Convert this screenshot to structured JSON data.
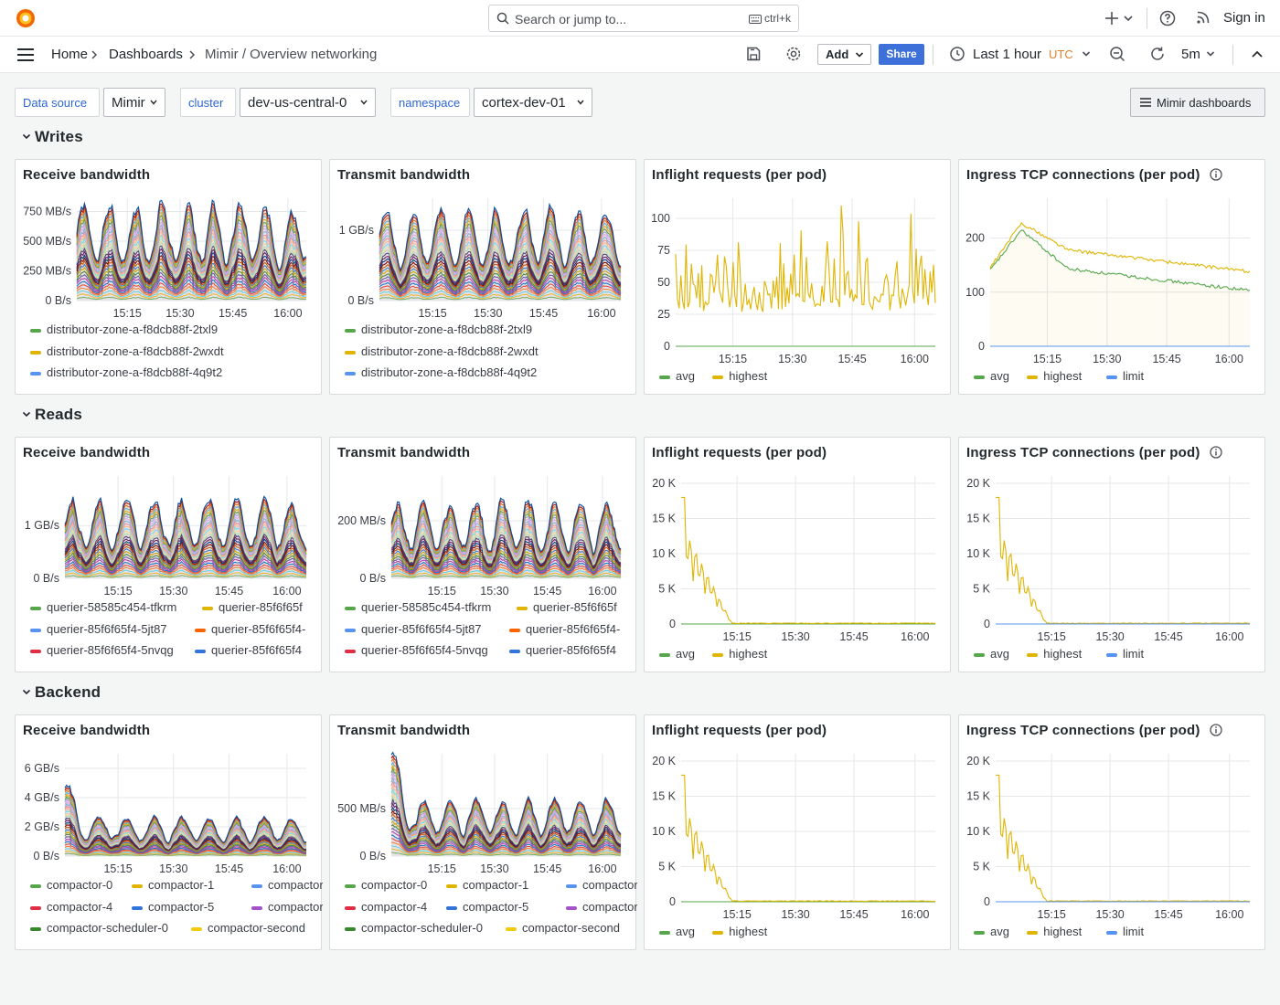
{
  "topbar": {
    "search_placeholder": "Search or jump to...",
    "search_shortcut": "ctrl+k",
    "sign_in": "Sign in"
  },
  "breadcrumbs": [
    "Home",
    "Dashboards",
    "Mimir / Overview networking"
  ],
  "toolbar": {
    "add_label": "Add",
    "share_label": "Share",
    "time_range": "Last 1 hour",
    "timezone": "UTC",
    "refresh_interval": "5m"
  },
  "variables": [
    {
      "label": "Data source",
      "value": "Mimir"
    },
    {
      "label": "cluster",
      "value": "dev-us-central-0"
    },
    {
      "label": "namespace",
      "value": "cortex-dev-01"
    }
  ],
  "dashboards_link": "Mimir dashboards",
  "colors": {
    "accent": "#3d71d9",
    "utc": "#e0812f",
    "green": "#56a64b",
    "yellow": "#e0b400",
    "blue": "#5794f2",
    "orange": "#fa6400",
    "red": "#e02f44",
    "darkblue": "#3274d9",
    "purple": "#a352cc",
    "darkgreen": "#37872d",
    "lightyellow": "#f2cc0c"
  },
  "rows": [
    {
      "title": "Writes",
      "panels": [
        {
          "title": "Receive bandwidth",
          "info": false,
          "legend": [
            {
              "name": "distributor-zone-a-f8dcb88f-2txl9",
              "color": "#56a64b"
            },
            {
              "name": "distributor-zone-a-f8dcb88f-2wxdt",
              "color": "#e0b400"
            },
            {
              "name": "distributor-zone-a-f8dcb88f-4q9t2",
              "color": "#5794f2"
            }
          ]
        },
        {
          "title": "Transmit bandwidth",
          "info": false,
          "legend": [
            {
              "name": "distributor-zone-a-f8dcb88f-2txl9",
              "color": "#56a64b"
            },
            {
              "name": "distributor-zone-a-f8dcb88f-2wxdt",
              "color": "#e0b400"
            },
            {
              "name": "distributor-zone-a-f8dcb88f-4q9t2",
              "color": "#5794f2"
            }
          ]
        },
        {
          "title": "Inflight requests (per pod)",
          "info": false,
          "legend": [
            {
              "name": "avg",
              "color": "#56a64b"
            },
            {
              "name": "highest",
              "color": "#e0b400"
            }
          ]
        },
        {
          "title": "Ingress TCP connections (per pod)",
          "info": true,
          "legend": [
            {
              "name": "avg",
              "color": "#56a64b"
            },
            {
              "name": "highest",
              "color": "#e0b400"
            },
            {
              "name": "limit",
              "color": "#5794f2"
            }
          ]
        }
      ]
    },
    {
      "title": "Reads",
      "panels": [
        {
          "title": "Receive bandwidth",
          "info": false,
          "legend": [
            {
              "name": "querier-58585c454-tfkrm",
              "color": "#56a64b"
            },
            {
              "name": "querier-85f6f65f",
              "color": "#e0b400"
            },
            {
              "name": "querier-85f6f65f4-5jt87",
              "color": "#5794f2"
            },
            {
              "name": "querier-85f6f65f4-",
              "color": "#fa6400"
            },
            {
              "name": "querier-85f6f65f4-5nvqg",
              "color": "#e02f44"
            },
            {
              "name": "querier-85f6f65f4",
              "color": "#3274d9"
            }
          ]
        },
        {
          "title": "Transmit bandwidth",
          "info": false,
          "legend": [
            {
              "name": "querier-58585c454-tfkrm",
              "color": "#56a64b"
            },
            {
              "name": "querier-85f6f65f",
              "color": "#e0b400"
            },
            {
              "name": "querier-85f6f65f4-5jt87",
              "color": "#5794f2"
            },
            {
              "name": "querier-85f6f65f4-",
              "color": "#fa6400"
            },
            {
              "name": "querier-85f6f65f4-5nvqg",
              "color": "#e02f44"
            },
            {
              "name": "querier-85f6f65f4",
              "color": "#3274d9"
            }
          ]
        },
        {
          "title": "Inflight requests (per pod)",
          "info": false,
          "legend": [
            {
              "name": "avg",
              "color": "#56a64b"
            },
            {
              "name": "highest",
              "color": "#e0b400"
            }
          ]
        },
        {
          "title": "Ingress TCP connections (per pod)",
          "info": true,
          "legend": [
            {
              "name": "avg",
              "color": "#56a64b"
            },
            {
              "name": "highest",
              "color": "#e0b400"
            },
            {
              "name": "limit",
              "color": "#5794f2"
            }
          ]
        }
      ]
    },
    {
      "title": "Backend",
      "panels": [
        {
          "title": "Receive bandwidth",
          "info": false,
          "legend": [
            {
              "name": "compactor-0",
              "color": "#56a64b"
            },
            {
              "name": "compactor-1",
              "color": "#e0b400"
            },
            {
              "name": "compactor-",
              "color": "#5794f2"
            },
            {
              "name": "compactor-4",
              "color": "#e02f44"
            },
            {
              "name": "compactor-5",
              "color": "#3274d9"
            },
            {
              "name": "compactor-",
              "color": "#a352cc"
            },
            {
              "name": "compactor-scheduler-0",
              "color": "#37872d"
            },
            {
              "name": "compactor-second",
              "color": "#f2cc0c"
            }
          ]
        },
        {
          "title": "Transmit bandwidth",
          "info": false,
          "legend": [
            {
              "name": "compactor-0",
              "color": "#56a64b"
            },
            {
              "name": "compactor-1",
              "color": "#e0b400"
            },
            {
              "name": "compactor-",
              "color": "#5794f2"
            },
            {
              "name": "compactor-4",
              "color": "#e02f44"
            },
            {
              "name": "compactor-5",
              "color": "#3274d9"
            },
            {
              "name": "compactor-",
              "color": "#a352cc"
            },
            {
              "name": "compactor-scheduler-0",
              "color": "#37872d"
            },
            {
              "name": "compactor-second",
              "color": "#f2cc0c"
            }
          ]
        },
        {
          "title": "Inflight requests (per pod)",
          "info": false,
          "legend": [
            {
              "name": "avg",
              "color": "#56a64b"
            },
            {
              "name": "highest",
              "color": "#e0b400"
            }
          ]
        },
        {
          "title": "Ingress TCP connections (per pod)",
          "info": true,
          "legend": [
            {
              "name": "avg",
              "color": "#56a64b"
            },
            {
              "name": "highest",
              "color": "#e0b400"
            },
            {
              "name": "limit",
              "color": "#5794f2"
            }
          ]
        }
      ]
    }
  ],
  "chart_data": [
    {
      "row": "Writes",
      "panel": "Receive bandwidth",
      "type": "area",
      "stacked": true,
      "x_ticks": [
        "15:15",
        "15:30",
        "15:45",
        "16:00"
      ],
      "y_ticks": [
        "0 B/s",
        "250 MB/s",
        "500 MB/s",
        "750 MB/s"
      ],
      "ylim": [
        0,
        800
      ],
      "y_unit": "MB/s",
      "series_count": 30,
      "total_approx": 700
    },
    {
      "row": "Writes",
      "panel": "Transmit bandwidth",
      "type": "area",
      "stacked": true,
      "x_ticks": [
        "15:15",
        "15:30",
        "15:45",
        "16:00"
      ],
      "y_ticks": [
        "0 B/s",
        "1 GB/s"
      ],
      "ylim": [
        0,
        1.35
      ],
      "y_unit": "GB/s",
      "series_count": 30,
      "total_approx": 1.1
    },
    {
      "row": "Writes",
      "panel": "Inflight requests (per pod)",
      "type": "line",
      "x_ticks": [
        "15:15",
        "15:30",
        "15:45",
        "16:00"
      ],
      "y_ticks": [
        "0",
        "25",
        "50",
        "75",
        "100"
      ],
      "ylim": [
        0,
        110
      ],
      "series": [
        {
          "name": "avg",
          "pattern": "flat",
          "level": 0
        },
        {
          "name": "highest",
          "pattern": "noisy",
          "level": 35,
          "peak": 105
        }
      ]
    },
    {
      "row": "Writes",
      "panel": "Ingress TCP connections (per pod)",
      "type": "line",
      "x_ticks": [
        "15:15",
        "15:30",
        "15:45",
        "16:00"
      ],
      "y_ticks": [
        "0",
        "100",
        "200"
      ],
      "ylim": [
        0,
        260
      ],
      "series": [
        {
          "name": "avg",
          "pattern": "decay",
          "start": 140,
          "peak": 215,
          "end": 103
        },
        {
          "name": "highest",
          "pattern": "decay",
          "start": 145,
          "peak": 228,
          "end": 138
        },
        {
          "name": "limit",
          "pattern": "flat",
          "level": 0
        }
      ]
    },
    {
      "row": "Reads",
      "panel": "Receive bandwidth",
      "type": "area",
      "stacked": true,
      "x_ticks": [
        "15:15",
        "15:30",
        "15:45",
        "16:00"
      ],
      "y_ticks": [
        "0 B/s",
        "1 GB/s"
      ],
      "ylim": [
        0,
        1.8
      ],
      "y_unit": "GB/s",
      "series_count": 30,
      "total_approx": 1.3
    },
    {
      "row": "Reads",
      "panel": "Transmit bandwidth",
      "type": "area",
      "stacked": true,
      "x_ticks": [
        "15:15",
        "15:30",
        "15:45",
        "16:00"
      ],
      "y_ticks": [
        "0 B/s",
        "200 MB/s"
      ],
      "ylim": [
        0,
        330
      ],
      "y_unit": "MB/s",
      "series_count": 30,
      "total_approx": 230
    },
    {
      "row": "Reads",
      "panel": "Inflight requests (per pod)",
      "type": "line",
      "x_ticks": [
        "15:15",
        "15:30",
        "15:45",
        "16:00"
      ],
      "y_ticks": [
        "0",
        "5 K",
        "10 K",
        "15 K",
        "20 K"
      ],
      "ylim": [
        0,
        20000
      ],
      "series": [
        {
          "name": "avg",
          "pattern": "flat",
          "level": 0
        },
        {
          "name": "highest",
          "pattern": "spike",
          "start": 18000,
          "end": 100
        }
      ]
    },
    {
      "row": "Reads",
      "panel": "Ingress TCP connections (per pod)",
      "type": "line",
      "x_ticks": [
        "15:15",
        "15:30",
        "15:45",
        "16:00"
      ],
      "y_ticks": [
        "0",
        "5 K",
        "10 K",
        "15 K",
        "20 K"
      ],
      "ylim": [
        0,
        20000
      ],
      "series": [
        {
          "name": "avg",
          "pattern": "flat",
          "level": 0
        },
        {
          "name": "highest",
          "pattern": "spike",
          "start": 18000,
          "end": 100
        },
        {
          "name": "limit",
          "pattern": "flat",
          "level": 0
        }
      ]
    },
    {
      "row": "Backend",
      "panel": "Receive bandwidth",
      "type": "area",
      "stacked": true,
      "x_ticks": [
        "15:15",
        "15:30",
        "15:45",
        "16:00"
      ],
      "y_ticks": [
        "0 B/s",
        "2 GB/s",
        "4 GB/s",
        "6 GB/s"
      ],
      "ylim": [
        0,
        6.5
      ],
      "y_unit": "GB/s",
      "series_count": 30,
      "total_approx": 2.3
    },
    {
      "row": "Backend",
      "panel": "Transmit bandwidth",
      "type": "area",
      "stacked": true,
      "x_ticks": [
        "15:15",
        "15:30",
        "15:45",
        "16:00"
      ],
      "y_ticks": [
        "0 B/s",
        "500 MB/s"
      ],
      "ylim": [
        0,
        1000
      ],
      "y_unit": "MB/s",
      "series_count": 30,
      "total_approx": 520
    },
    {
      "row": "Backend",
      "panel": "Inflight requests (per pod)",
      "type": "line",
      "x_ticks": [
        "15:15",
        "15:30",
        "15:45",
        "16:00"
      ],
      "y_ticks": [
        "0",
        "5 K",
        "10 K",
        "15 K",
        "20 K"
      ],
      "ylim": [
        0,
        20000
      ],
      "series": [
        {
          "name": "avg",
          "pattern": "flat",
          "level": 0
        },
        {
          "name": "highest",
          "pattern": "spike",
          "start": 18000,
          "end": 100
        }
      ]
    },
    {
      "row": "Backend",
      "panel": "Ingress TCP connections (per pod)",
      "type": "line",
      "x_ticks": [
        "15:15",
        "15:30",
        "15:45",
        "16:00"
      ],
      "y_ticks": [
        "0",
        "5 K",
        "10 K",
        "15 K",
        "20 K"
      ],
      "ylim": [
        0,
        20000
      ],
      "series": [
        {
          "name": "avg",
          "pattern": "flat",
          "level": 0
        },
        {
          "name": "highest",
          "pattern": "spike",
          "start": 18000,
          "end": 100
        },
        {
          "name": "limit",
          "pattern": "flat",
          "level": 0
        }
      ]
    }
  ]
}
